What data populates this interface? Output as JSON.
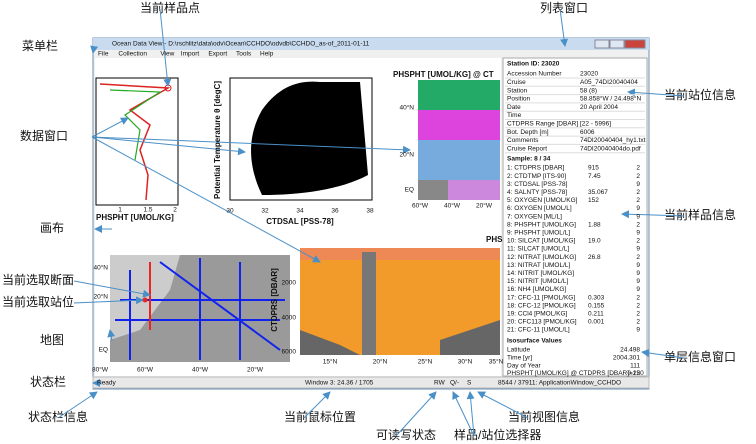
{
  "callouts": [
    "当前样品点",
    "列表窗口",
    "菜单栏",
    "当前站位信息",
    "数据窗口",
    "当前样品信息",
    "画布",
    "当前选取断面",
    "当前选取站位",
    "地图",
    "单层信息窗口",
    "状态栏",
    "状态栏信息",
    "当前鼠标位置",
    "当前视图信息",
    "可读写状态",
    "样品/站位选择器"
  ],
  "window": {
    "title": "Ocean Data View - D:\\rschlitz\\data\\odv\\Ocean\\CCHDO\\odvdb\\CCHDO_as-of_2011-01-11",
    "menu": [
      "File",
      "Collection",
      "View",
      "Import",
      "Export",
      "Tools",
      "Help"
    ],
    "profile_plot": {
      "xlabel": "PHSPHT [UMOL/KG]",
      "xticks": [
        "1",
        "1.5",
        "2"
      ]
    },
    "scatter_plot": {
      "xlabel": "CTDSAL [PSS-78]",
      "ylabel": "Potential Temperature θ [degC]",
      "xticks": [
        "30",
        "32",
        "34",
        "36",
        "38"
      ]
    },
    "surface_map": {
      "title": "PHSPHT [UMOL/KG] @ CT",
      "lat_labels": [
        "40°N",
        "20°N",
        "EQ"
      ],
      "lon_labels": [
        "60°W",
        "40°W",
        "20°W"
      ]
    },
    "section_plot": {
      "title": "PHS",
      "ylabel": "CTDPRS [DBAR]",
      "yticks": [
        "2000",
        "4000",
        "6000"
      ],
      "xticks": [
        "15°N",
        "20°N",
        "25°N",
        "30°N",
        "35°N"
      ]
    },
    "station_map": {
      "lat_labels": [
        "40°N",
        "20°N",
        "EQ"
      ],
      "lon_labels": [
        "80°W",
        "60°W",
        "40°W",
        "20°W"
      ]
    },
    "station_panel": {
      "header": "Station ID: 23020",
      "rows": [
        [
          "Accession Number",
          "23020"
        ],
        [
          "Cruise",
          "A05_74DI20040404"
        ],
        [
          "Station",
          "58 (8)"
        ],
        [
          "Position",
          "58.858°W / 24.498°N"
        ],
        [
          "Date",
          "20 April 2004"
        ],
        [
          "Time",
          ""
        ],
        [
          "CTDPRS Range [DBAR]",
          "[22 - 5996]"
        ],
        [
          "Bot. Depth [m]",
          "6006"
        ],
        [
          "Comments",
          "74DI20040404_hy1.txt"
        ],
        [
          "Cruise Report",
          "74DI20040404do.pdf"
        ]
      ]
    },
    "sample_panel": {
      "header": "Sample: 8 / 34",
      "rows": [
        [
          "1: CTDPRS [DBAR]",
          "915",
          "2"
        ],
        [
          "2: CTDTMP [ITS-90]",
          "7.45",
          "2"
        ],
        [
          "3: CTDSAL [PSS-78]",
          "",
          "9"
        ],
        [
          "4: SALNTY [PSS-78]",
          "35.067",
          "2"
        ],
        [
          "5: OXYGEN [UMOL/KG]",
          "152",
          "2"
        ],
        [
          "6: OXYGEN [UMOL/L]",
          "",
          "9"
        ],
        [
          "7: OXYGEN [ML/L]",
          "",
          "9"
        ],
        [
          "8: PHSPHT [UMOL/KG]",
          "1.88",
          "2"
        ],
        [
          "9: PHSPHT [UMOL/L]",
          "",
          "9"
        ],
        [
          "10: SILCAT [UMOL/KG]",
          "19.0",
          "2"
        ],
        [
          "11: SILCAT [UMOL/L]",
          "",
          "9"
        ],
        [
          "12: NITRAT [UMOL/KG]",
          "26.8",
          "2"
        ],
        [
          "13: NITRAT [UMOL/L]",
          "",
          "9"
        ],
        [
          "14: NITRIT [UMOL/KG]",
          "",
          "9"
        ],
        [
          "15: NITRIT [UMOL/L]",
          "",
          "9"
        ],
        [
          "16: NH4 [UMOL/KG]",
          "",
          "9"
        ],
        [
          "17: CFC-11 [PMOL/KG]",
          "0.303",
          "2"
        ],
        [
          "18: CFC-12 [PMOL/KG]",
          "0.155",
          "2"
        ],
        [
          "19: CCl4 [PMOL/KG]",
          "0.211",
          "2"
        ],
        [
          "20: CFC113 [PMOL/KG]",
          "0.001",
          "2"
        ],
        [
          "21: CFC-11 [UMOL/L]",
          "",
          "9"
        ]
      ]
    },
    "isosurface_panel": {
      "header": "Isosurface Values",
      "rows": [
        [
          "Latitude",
          "24.498"
        ],
        [
          "Time [yr]",
          "2004.301"
        ],
        [
          "Day of Year",
          "111"
        ],
        [
          "PHSPHT [UMOL/KG] @ CTDPRS [DBAR]=250",
          "0.12"
        ]
      ]
    },
    "status_bar": [
      "Ready",
      "Window 3: 24.36 / 1705",
      "RW",
      "Q/-",
      "S",
      "8544 / 37911: ApplicationWindow_CCHDO"
    ]
  }
}
